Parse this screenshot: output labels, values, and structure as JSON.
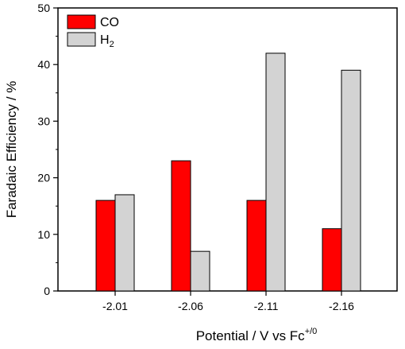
{
  "chart_data": {
    "type": "bar",
    "title": "",
    "xlabel": "Potential / V vs Fc",
    "xlabel_sup": "+/0",
    "ylabel": "Faradaic Efficiency / %",
    "categories": [
      "-2.01",
      "-2.06",
      "-2.11",
      "-2.16"
    ],
    "ylim": [
      0,
      50
    ],
    "yticks": [
      "0",
      "10",
      "20",
      "30",
      "40",
      "50"
    ],
    "grid": false,
    "legend_position": "top-left",
    "series": [
      {
        "name": "CO",
        "name_sub": "",
        "color": "#ff0000",
        "values": [
          16,
          23,
          16,
          11
        ]
      },
      {
        "name": "H",
        "name_sub": "2",
        "color": "#d3d3d3",
        "values": [
          17,
          7,
          42,
          39
        ]
      }
    ]
  }
}
